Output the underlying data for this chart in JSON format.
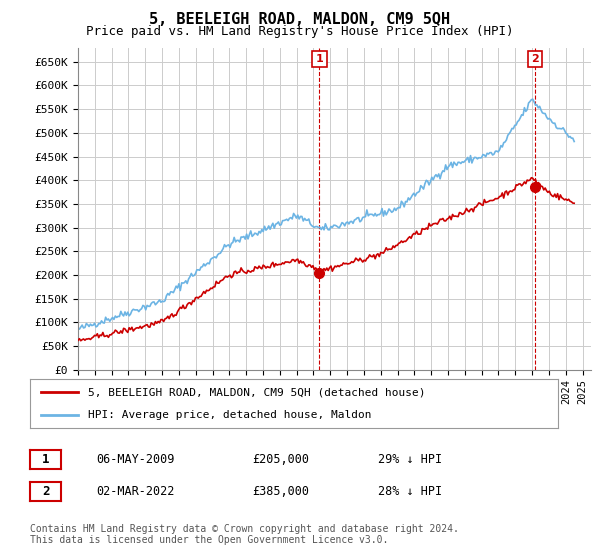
{
  "title": "5, BEELEIGH ROAD, MALDON, CM9 5QH",
  "subtitle": "Price paid vs. HM Land Registry's House Price Index (HPI)",
  "ylabel_ticks": [
    "£0",
    "£50K",
    "£100K",
    "£150K",
    "£200K",
    "£250K",
    "£300K",
    "£350K",
    "£400K",
    "£450K",
    "£500K",
    "£550K",
    "£600K",
    "£650K"
  ],
  "ytick_values": [
    0,
    50000,
    100000,
    150000,
    200000,
    250000,
    300000,
    350000,
    400000,
    450000,
    500000,
    550000,
    600000,
    650000
  ],
  "ylim": [
    0,
    680000
  ],
  "xlim_start": 1995.0,
  "xlim_end": 2025.5,
  "hpi_color": "#6cb4e4",
  "price_color": "#cc0000",
  "marker1_date": 2009.35,
  "marker1_price": 205000,
  "marker1_label": "1",
  "marker2_date": 2022.17,
  "marker2_price": 385000,
  "marker2_label": "2",
  "legend_line1": "5, BEELEIGH ROAD, MALDON, CM9 5QH (detached house)",
  "legend_line2": "HPI: Average price, detached house, Maldon",
  "table_row1": [
    "1",
    "06-MAY-2009",
    "£205,000",
    "29% ↓ HPI"
  ],
  "table_row2": [
    "2",
    "02-MAR-2022",
    "£385,000",
    "28% ↓ HPI"
  ],
  "footnote": "Contains HM Land Registry data © Crown copyright and database right 2024.\nThis data is licensed under the Open Government Licence v3.0.",
  "background_color": "#ffffff",
  "grid_color": "#cccccc"
}
